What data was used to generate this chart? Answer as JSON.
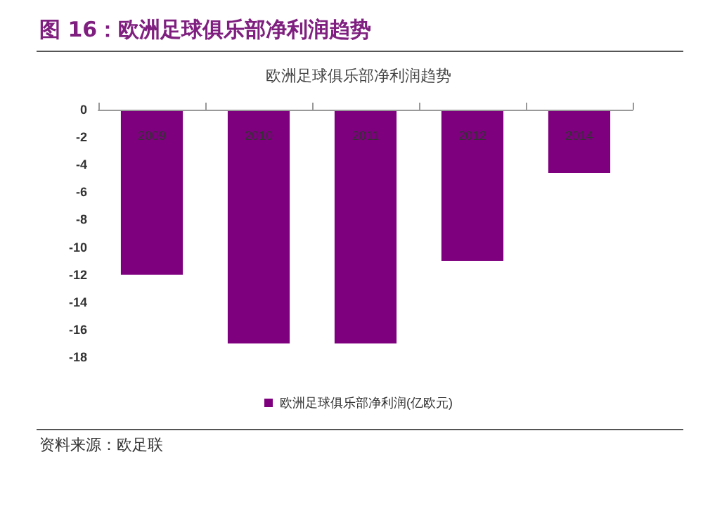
{
  "chart_data": {
    "type": "bar",
    "title": "图 16：欧洲足球俱乐部净利润趋势",
    "subtitle": "欧洲足球俱乐部净利润趋势",
    "categories": [
      "2009",
      "2010",
      "2011",
      "2012",
      "2014"
    ],
    "series": [
      {
        "name": "欧洲足球俱乐部净利润(亿欧元)",
        "color": "#7f007f",
        "values": [
          -12,
          -17,
          -17,
          -11,
          -4.6
        ]
      }
    ],
    "ylim": [
      -18,
      0
    ],
    "yticks": [
      0,
      -2,
      -4,
      -6,
      -8,
      -10,
      -12,
      -14,
      -16,
      -18
    ],
    "grid": false,
    "legend": "bottom",
    "annotations": [
      "资料来源：欧足联"
    ]
  }
}
